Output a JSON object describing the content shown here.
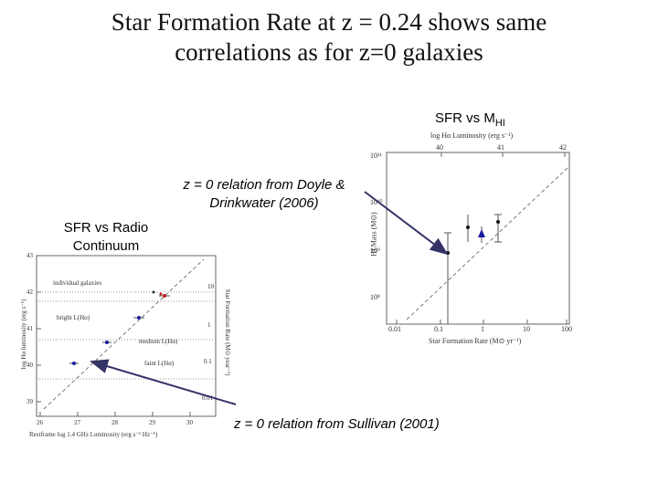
{
  "slide": {
    "title_line1": "Star Formation Rate at z = 0.24 shows same",
    "title_line2": "correlations as for z=0 galaxies",
    "label_sfr_hi_main": "SFR vs M",
    "label_sfr_hi_sub": "HI",
    "label_doyle_line1": "z = 0 relation from  Doyle &",
    "label_doyle_line2": "Drinkwater (2006)",
    "label_radio_line1": "SFR vs Radio",
    "label_radio_line2": "Continuum",
    "label_sullivan": "z = 0 relation from Sullivan (2001)"
  },
  "right_plot": {
    "top_axis_label": "log Hα Luminosity (erg s⁻¹)",
    "top_ticks": [
      "40",
      "41",
      "42"
    ],
    "y_label": "HI Mass (M⊙)",
    "y_ticks": [
      "10¹¹",
      "10¹⁰",
      "10⁹",
      "10⁸"
    ],
    "x_label": "Star Formation Rate (M⊙ yr⁻¹)",
    "x_ticks": [
      "0.01",
      "0.1",
      "1",
      "10",
      "100"
    ]
  },
  "left_plot": {
    "x_label": "Restframe log 1.4 GHz Luminosity (erg s⁻¹ Hz⁻¹)",
    "x_ticks": [
      "26",
      "27",
      "28",
      "29",
      "30"
    ],
    "y_label": "log Hα luminosity (erg s⁻¹)",
    "y_ticks": [
      "43",
      "42",
      "41",
      "40",
      "39"
    ],
    "right_label": "Star Formation Rate (M⊙ year⁻¹)",
    "right_ticks": [
      "10",
      "1",
      "0.1",
      "0.01"
    ],
    "annotations": [
      "individual galaxies",
      "bright L(Hα)",
      "medium L(Hα)",
      "faint L(Hα)"
    ]
  },
  "colors": {
    "arrow": "#333366",
    "text": "#000000",
    "blue_point": "#1a1aa0",
    "red_point": "#c02020"
  }
}
